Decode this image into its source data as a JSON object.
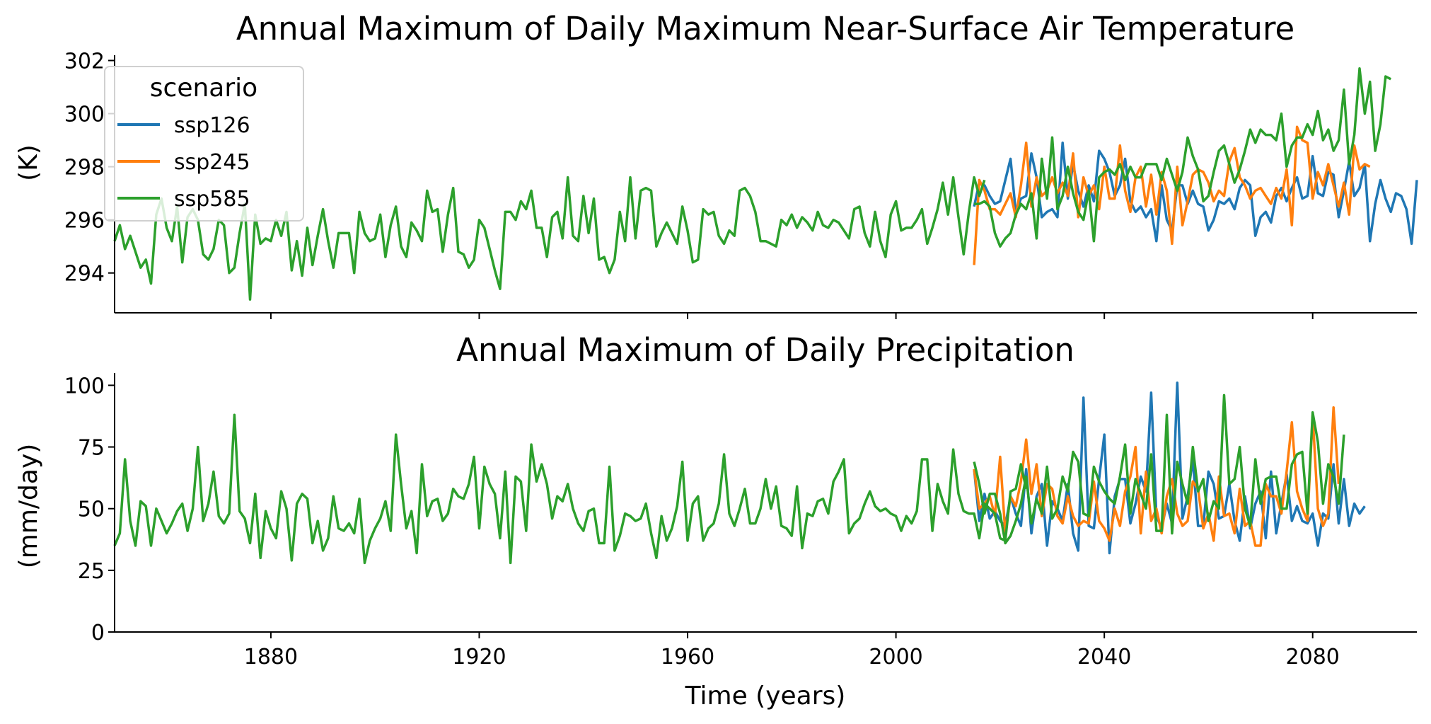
{
  "colors": {
    "ssp126": "#1f77b4",
    "ssp245": "#ff7f0e",
    "ssp585": "#2ca02c"
  },
  "legend": {
    "title": "scenario",
    "placement": "upper-left",
    "entries": [
      "ssp126",
      "ssp245",
      "ssp585"
    ]
  },
  "xlabel": "Time (years)",
  "chart_data": [
    {
      "type": "line",
      "title": "Annual Maximum of Daily Maximum Near-Surface Air Temperature",
      "xlabel": "",
      "ylabel": "(K)",
      "xlim": [
        1850,
        2100
      ],
      "ylim": [
        292.5,
        302.2
      ],
      "xticks": [
        1880,
        1920,
        1960,
        2000,
        2040,
        2080
      ],
      "yticks": [
        294,
        296,
        298,
        300,
        302
      ],
      "grid": false,
      "historical": {
        "start": 1850,
        "values": [
          295.2,
          295.8,
          294.9,
          295.4,
          294.8,
          294.2,
          294.5,
          293.6,
          296.2,
          296.8,
          295.7,
          295.2,
          296.5,
          294.4,
          296.1,
          296.4,
          296.0,
          294.7,
          294.5,
          294.9,
          296.0,
          295.8,
          294.0,
          294.2,
          295.5,
          296.6,
          293.0,
          296.2,
          295.1,
          295.3,
          295.2,
          296.0,
          295.4,
          296.3,
          294.1,
          295.2,
          293.9,
          295.7,
          294.3,
          295.4,
          296.4,
          295.2,
          294.2,
          295.5,
          295.5,
          295.5,
          294.0,
          296.3,
          295.5,
          295.2,
          295.3,
          296.2,
          294.6,
          295.8,
          296.5,
          295.0,
          294.6,
          295.9,
          295.6,
          295.2,
          297.1,
          296.3,
          296.4,
          294.8,
          296.2,
          297.2,
          294.8,
          294.7,
          294.2,
          294.5,
          296.0,
          295.7,
          294.9,
          294.1,
          293.4,
          296.3,
          296.3,
          296.0,
          296.7,
          296.4,
          297.1,
          295.7,
          295.7,
          294.6,
          296.1,
          296.3,
          295.3,
          297.6,
          295.4,
          295.2,
          296.9,
          295.5,
          296.8,
          294.5,
          294.6,
          294.0,
          294.5,
          296.3,
          295.2,
          297.6,
          295.3,
          297.1,
          297.2,
          297.1,
          295.0,
          295.5,
          295.9,
          295.5,
          295.1,
          296.5,
          295.6,
          294.4,
          294.5,
          296.4,
          296.2,
          296.3,
          295.4,
          295.1,
          295.6,
          295.4,
          297.1,
          297.2,
          296.9,
          296.3,
          295.2,
          295.2,
          295.1,
          295.0,
          296.0,
          295.8,
          296.2,
          295.7,
          296.1,
          295.9,
          295.6,
          296.3,
          295.8,
          295.7,
          296.0,
          295.9,
          295.6,
          295.3,
          296.4,
          296.5,
          295.5,
          295.0,
          296.3,
          295.2,
          294.6,
          296.2,
          296.7,
          295.6,
          295.7,
          295.7,
          296.0,
          296.4,
          295.1,
          295.7,
          296.4,
          297.4,
          296.2,
          297.6,
          296.1,
          294.7,
          296.3,
          297.6,
          296.9,
          297.5
        ]
      },
      "projection_start": 2015,
      "series": [
        {
          "name": "ssp126",
          "values": [
            296.5,
            297.4,
            297.3,
            296.9,
            296.6,
            296.7,
            297.5,
            298.3,
            296.3,
            296.8,
            296.9,
            298.5,
            297.6,
            296.1,
            296.3,
            296.4,
            296.1,
            298.9,
            296.8,
            298.1,
            297.1,
            296.5,
            297.3,
            296.7,
            298.6,
            298.3,
            297.8,
            296.9,
            297.3,
            298.3,
            296.7,
            296.3,
            296.5,
            296.1,
            296.4,
            295.2,
            297.3,
            296.0,
            295.6,
            297.3,
            297.3,
            296.6,
            297.1,
            296.6,
            296.5,
            295.6,
            296.0,
            296.7,
            296.6,
            296.8,
            296.4,
            297.2,
            297.5,
            297.3,
            295.4,
            296.1,
            296.3,
            295.9,
            296.9,
            297.2,
            296.7,
            297.2,
            297.6,
            296.8,
            296.9,
            298.4,
            297.0,
            296.9,
            297.8,
            297.7,
            296.1,
            297.1,
            298.2,
            296.9,
            297.2,
            298.1,
            295.2,
            296.6,
            297.5,
            296.8,
            296.3,
            297.0,
            296.9,
            296.4,
            295.1,
            297.5
          ]
        },
        {
          "name": "ssp245",
          "values": [
            294.3,
            297.5,
            297.1,
            296.4,
            296.4,
            296.2,
            296.6,
            297.0,
            296.1,
            297.3,
            298.9,
            296.5,
            297.6,
            296.9,
            297.1,
            297.6,
            297.0,
            297.4,
            296.9,
            298.5,
            296.1,
            297.6,
            296.9,
            297.3,
            296.4,
            298.0,
            296.8,
            296.8,
            298.8,
            297.1,
            296.3,
            297.6,
            298.0,
            296.5,
            297.7,
            296.2,
            297.8,
            297.1,
            295.1,
            298.0,
            295.8,
            296.7,
            297.7,
            297.9,
            297.8,
            297.4,
            296.7,
            297.1,
            296.9,
            298.2,
            298.7,
            297.6,
            297.3,
            296.8,
            297.1,
            297.2,
            296.9,
            296.6,
            297.2,
            296.8,
            297.9,
            295.8,
            299.5,
            299.0,
            298.9,
            296.8,
            297.8,
            297.3,
            298.1,
            297.3,
            296.5,
            297.4,
            296.2,
            298.8,
            297.9,
            298.1,
            298.0
          ]
        },
        {
          "name": "ssp585",
          "values": [
            296.6,
            296.6,
            296.7,
            296.5,
            295.5,
            295.0,
            295.3,
            295.5,
            296.2,
            296.6,
            296.4,
            297.0,
            295.3,
            298.3,
            296.8,
            299.1,
            296.4,
            296.9,
            298.0,
            297.0,
            296.3,
            296.0,
            297.1,
            295.2,
            297.6,
            297.8,
            297.9,
            297.7,
            298.1,
            297.5,
            298.0,
            297.6,
            297.6,
            298.1,
            298.1,
            298.1,
            297.5,
            298.3,
            297.7,
            297.1,
            297.8,
            299.1,
            298.4,
            297.9,
            296.7,
            296.9,
            297.8,
            298.6,
            298.8,
            298.1,
            297.4,
            297.9,
            298.6,
            299.4,
            298.9,
            299.4,
            299.2,
            299.2,
            299.0,
            300.0,
            298.0,
            298.8,
            299.1,
            299.1,
            299.6,
            299.2,
            300.1,
            299.0,
            299.4,
            298.6,
            299.0,
            300.9,
            298.1,
            299.2,
            301.7,
            300.0,
            301.2,
            298.6,
            299.6,
            301.4,
            301.3
          ]
        }
      ]
    },
    {
      "type": "line",
      "title": "Annual Maximum of Daily Precipitation",
      "xlabel": "Time (years)",
      "ylabel": "(mm/day)",
      "xlim": [
        1850,
        2100
      ],
      "ylim": [
        0,
        105
      ],
      "xticks": [
        1880,
        1920,
        1960,
        2000,
        2040,
        2080
      ],
      "yticks": [
        0,
        25,
        50,
        75,
        100
      ],
      "grid": false,
      "historical": {
        "start": 1850,
        "values": [
          35,
          40,
          70,
          45,
          35,
          53,
          51,
          35,
          50,
          45,
          40,
          44,
          49,
          52,
          41,
          50,
          75,
          45,
          52,
          65,
          47,
          44,
          48,
          88,
          49,
          46,
          36,
          56,
          30,
          49,
          42,
          38,
          57,
          50,
          29,
          52,
          56,
          54,
          36,
          45,
          33,
          38,
          55,
          42,
          41,
          44,
          40,
          54,
          28,
          37,
          42,
          46,
          53,
          41,
          80,
          60,
          42,
          49,
          32,
          68,
          47,
          53,
          54,
          45,
          48,
          58,
          55,
          54,
          60,
          71,
          42,
          67,
          60,
          56,
          38,
          65,
          28,
          63,
          61,
          41,
          76,
          61,
          68,
          60,
          46,
          55,
          53,
          60,
          50,
          44,
          41,
          49,
          50,
          36,
          36,
          67,
          33,
          39,
          48,
          47,
          45,
          46,
          52,
          40,
          30,
          47,
          37,
          42,
          51,
          69,
          37,
          52,
          55,
          37,
          42,
          44,
          52,
          72,
          48,
          43,
          50,
          58,
          44,
          44,
          50,
          62,
          50,
          59,
          43,
          42,
          39,
          59,
          34,
          48,
          47,
          53,
          54,
          48,
          61,
          65,
          70,
          40,
          44,
          46,
          52,
          57,
          51,
          49,
          50,
          48,
          47,
          41,
          47,
          44,
          49,
          70,
          70,
          41,
          60,
          53,
          48,
          74,
          56,
          49,
          48,
          48,
          38,
          52,
          50,
          48,
          38,
          37,
          57,
          58,
          68,
          58
        ]
      },
      "projection_start": 2015,
      "series": [
        {
          "name": "ssp126",
          "values": [
            66,
            45,
            56,
            46,
            49,
            45,
            43,
            55,
            48,
            43,
            66,
            40,
            55,
            60,
            35,
            53,
            50,
            45,
            60,
            40,
            33,
            95,
            43,
            42,
            62,
            80,
            32,
            55,
            62,
            62,
            44,
            52,
            63,
            57,
            97,
            47,
            42,
            52,
            44,
            101,
            46,
            55,
            70,
            43,
            43,
            65,
            60,
            46,
            47,
            60,
            45,
            37,
            55,
            42,
            52,
            57,
            38,
            65,
            40,
            52,
            64,
            45,
            51,
            45,
            44,
            48,
            35,
            48,
            46,
            68,
            44,
            62,
            43,
            52,
            48,
            51
          ]
        },
        {
          "name": "ssp245",
          "values": [
            66,
            50,
            52,
            55,
            47,
            71,
            40,
            55,
            51,
            61,
            78,
            56,
            68,
            47,
            60,
            58,
            47,
            44,
            55,
            47,
            43,
            45,
            44,
            61,
            45,
            42,
            37,
            50,
            43,
            57,
            63,
            75,
            40,
            65,
            45,
            50,
            40,
            55,
            62,
            48,
            43,
            45,
            61,
            58,
            42,
            48,
            37,
            63,
            47,
            48,
            40,
            58,
            43,
            45,
            35,
            35,
            60,
            55,
            55,
            48,
            65,
            85,
            57,
            50,
            45,
            88,
            50,
            43,
            48,
            91,
            60
          ]
        },
        {
          "name": "ssp585",
          "values": [
            69,
            60,
            48,
            56,
            56,
            48,
            36,
            39,
            45,
            52,
            63,
            44,
            54,
            48,
            67,
            46,
            50,
            63,
            57,
            73,
            69,
            48,
            47,
            67,
            61,
            57,
            54,
            52,
            63,
            76,
            48,
            62,
            56,
            50,
            72,
            41,
            41,
            88,
            40,
            69,
            60,
            52,
            75,
            57,
            62,
            45,
            53,
            50,
            96,
            60,
            62,
            75,
            50,
            43,
            70,
            52,
            62,
            63,
            63,
            50,
            50,
            68,
            72,
            73,
            48,
            89,
            77,
            52,
            68,
            63,
            52,
            80
          ]
        }
      ]
    }
  ]
}
